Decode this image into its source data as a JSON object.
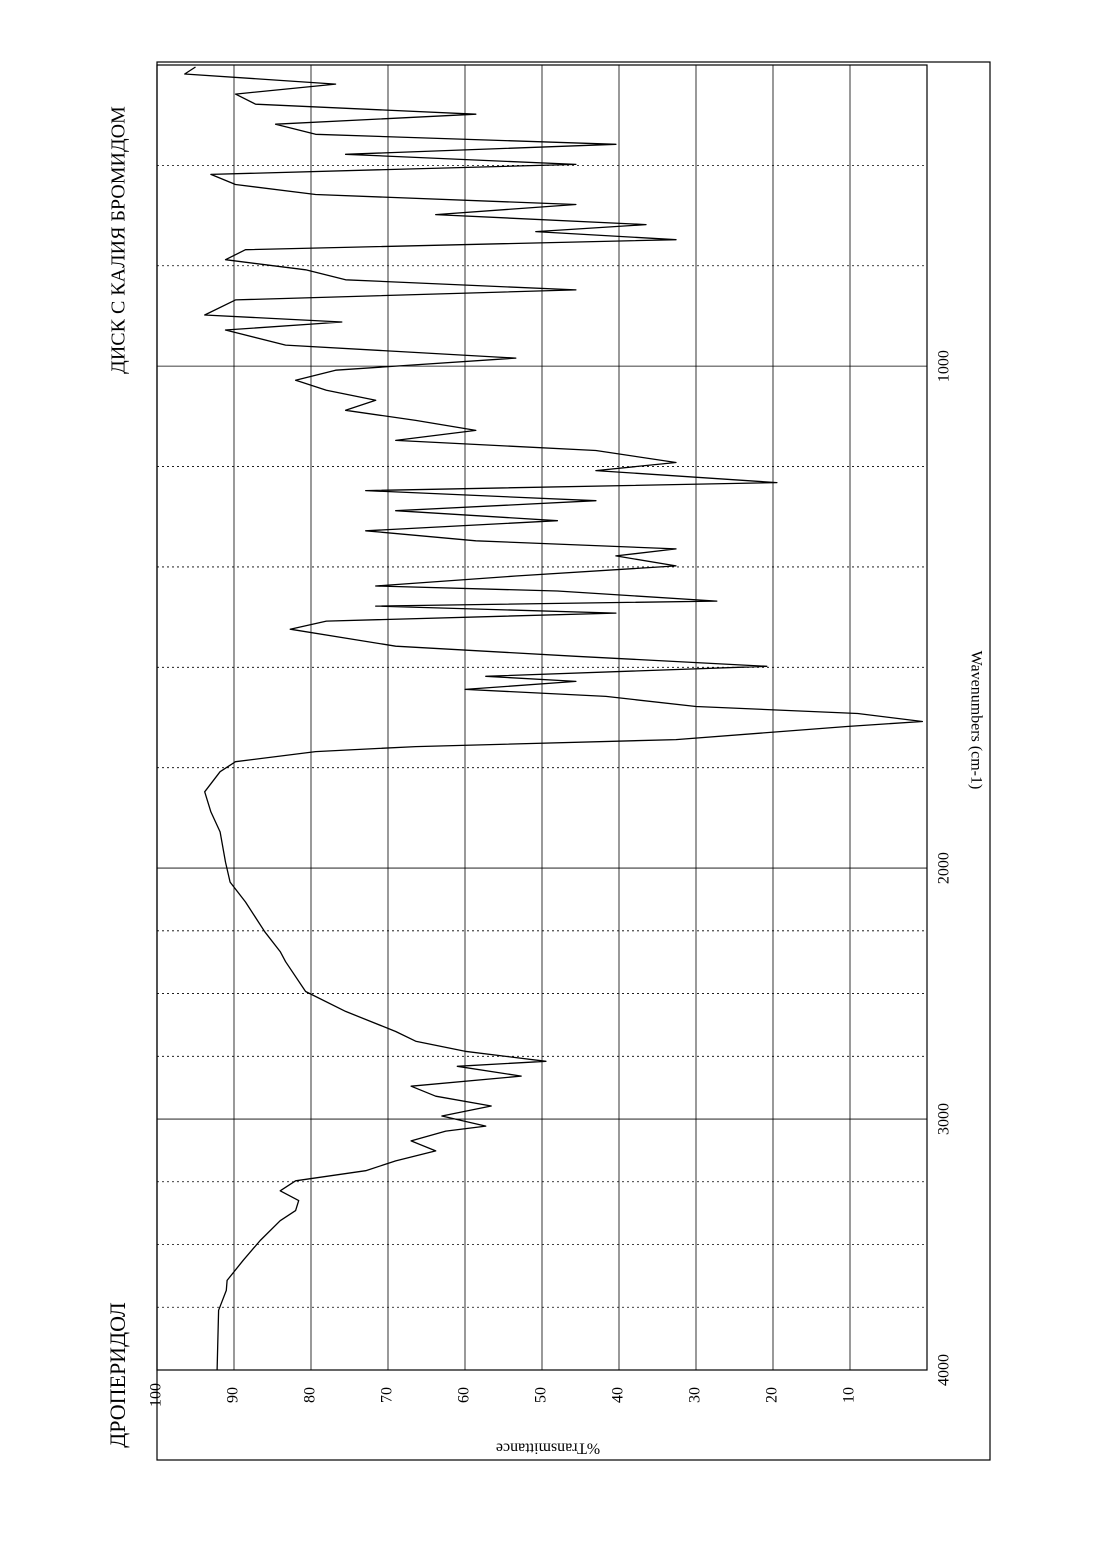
{
  "chart_data": {
    "type": "line",
    "title": "ДРОПЕРИДОЛ",
    "subtitle": "ДИСК С КАЛИЯ БРОМИДОМ",
    "x_label": "Wavenumbers (cm-1)",
    "y_label": "%Transmittance",
    "color": "#000000",
    "grid": true,
    "xlim": [
      4000,
      400
    ],
    "xticks": [
      4000,
      3000,
      2000,
      1000
    ],
    "x_minor_ticks": [
      3750,
      3500,
      3250,
      2750,
      2500,
      2250,
      1800,
      1600,
      1400,
      1200,
      800,
      600
    ],
    "x_scale_change": {
      "at": 2000,
      "factor": 2
    },
    "ylim": [
      0,
      100
    ],
    "yticks": [
      10,
      20,
      30,
      40,
      50,
      60,
      70,
      80,
      90,
      100
    ],
    "x": [
      4000,
      3762,
      3683,
      3643,
      3563,
      3484,
      3405,
      3365,
      3325,
      3286,
      3246,
      3206,
      3167,
      3127,
      3087,
      3048,
      3028,
      2988,
      2948,
      2909,
      2869,
      2829,
      2790,
      2770,
      2730,
      2690,
      2651,
      2571,
      2492,
      2373,
      2333,
      2254,
      2135,
      2056,
      1988,
      1928,
      1888,
      1848,
      1808,
      1788,
      1768,
      1758,
      1744,
      1718,
      1708,
      1692,
      1678,
      1658,
      1644,
      1628,
      1618,
      1598,
      1578,
      1558,
      1524,
      1508,
      1492,
      1478,
      1468,
      1448,
      1438,
      1418,
      1398,
      1378,
      1364,
      1348,
      1328,
      1308,
      1288,
      1268,
      1248,
      1232,
      1208,
      1192,
      1168,
      1148,
      1128,
      1108,
      1088,
      1068,
      1048,
      1028,
      1008,
      984,
      958,
      928,
      912,
      898,
      868,
      848,
      828,
      808,
      788,
      768,
      748,
      732,
      718,
      698,
      678,
      658,
      638,
      618,
      598,
      578,
      558,
      538,
      518,
      498,
      478,
      458,
      438,
      418,
      404
    ],
    "values": [
      92.2,
      92,
      91,
      90.9,
      88.8,
      86.6,
      84,
      82,
      81.6,
      84,
      82,
      72.9,
      69,
      63.8,
      67,
      62.5,
      57.3,
      63,
      56.6,
      63.8,
      67,
      52.7,
      61,
      49.5,
      60,
      66.4,
      69,
      75.5,
      80.7,
      83.3,
      84,
      86,
      88.5,
      90.5,
      91.1,
      91.8,
      93,
      93.8,
      91.8,
      89.8,
      79.4,
      66.4,
      32.6,
      10.4,
      0.6,
      9,
      30,
      41.7,
      60,
      45.6,
      57.3,
      20.8,
      45.6,
      69,
      82.7,
      78,
      40.4,
      71.6,
      27.3,
      48,
      71.6,
      53.4,
      32.6,
      40.4,
      32.6,
      58.6,
      72.9,
      48,
      69,
      43,
      72.9,
      19.5,
      43,
      32.6,
      43,
      69,
      58.6,
      66.4,
      75.5,
      71.6,
      78,
      82,
      76.8,
      53.4,
      83.3,
      91.1,
      76,
      93.8,
      89.8,
      45.6,
      75.5,
      80.7,
      91.1,
      88.5,
      32.6,
      50.8,
      36.5,
      63.8,
      45.6,
      79.4,
      89.8,
      93,
      45.6,
      75.5,
      40.4,
      79.4,
      84.6,
      58.6,
      87.2,
      89.8,
      76.8,
      96.4,
      95
    ]
  }
}
